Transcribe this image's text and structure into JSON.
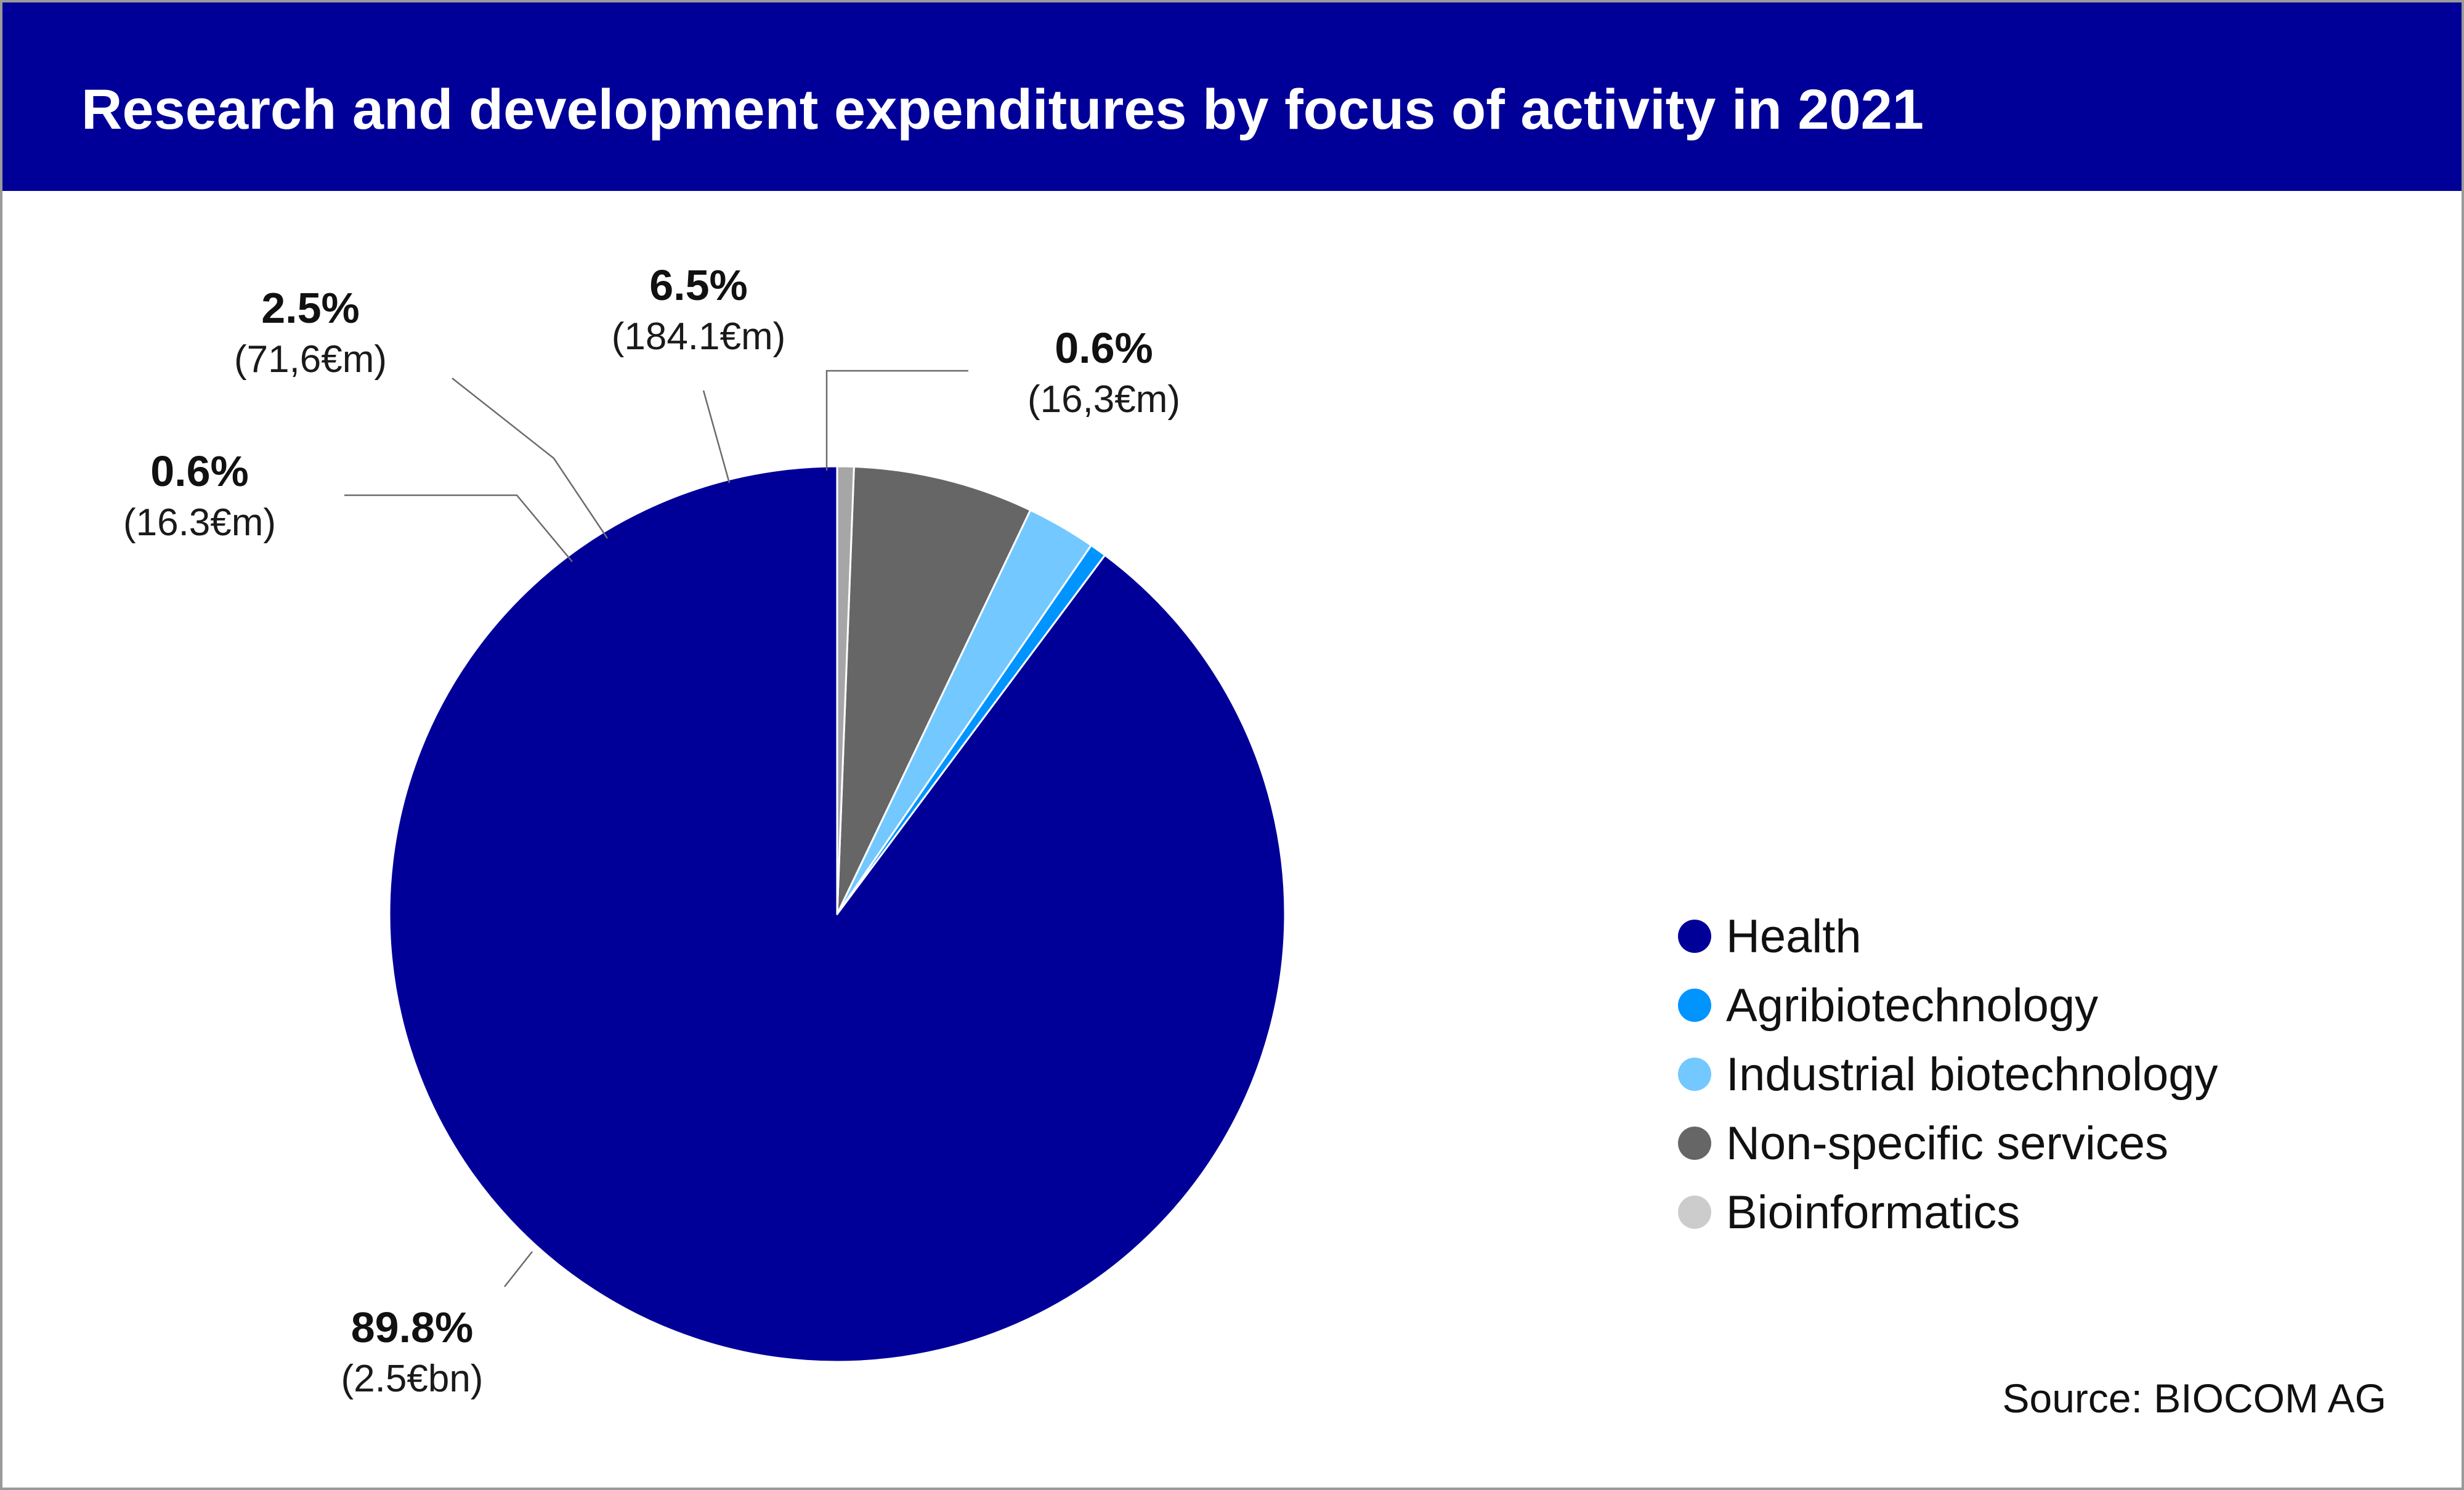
{
  "header": {
    "title": "Research and development expenditures by focus of activity in 2021"
  },
  "chart_data": {
    "type": "pie",
    "title": "Research and development expenditures by focus of activity in 2021",
    "slices": [
      {
        "name": "Health",
        "percent": 89.8,
        "pct_label": "89.8%",
        "amount_label": "(2.5€bn)",
        "color": "#000099"
      },
      {
        "name": "Agribiotechnology",
        "percent": 0.6,
        "pct_label": "0.6%",
        "amount_label": "(16.3€m)",
        "color": "#0094ff"
      },
      {
        "name": "Industrial biotechnology",
        "percent": 2.5,
        "pct_label": "2.5%",
        "amount_label": "(71,6€m)",
        "color": "#73c8ff"
      },
      {
        "name": "Non-specific services",
        "percent": 6.5,
        "pct_label": "6.5%",
        "amount_label": "(184.1€m)",
        "color": "#666666"
      },
      {
        "name": "Bioinformatics",
        "percent": 0.6,
        "pct_label": "0.6%",
        "amount_label": "(16,3€m)",
        "color": "#a6a6a6"
      }
    ],
    "legend_position": "right"
  },
  "legend": {
    "items": [
      {
        "label": "Health",
        "color": "#000099"
      },
      {
        "label": "Agribiotechnology",
        "color": "#0094ff"
      },
      {
        "label": "Industrial biotechnology",
        "color": "#73c8ff"
      },
      {
        "label": "Non-specific services",
        "color": "#666666"
      },
      {
        "label": "Bioinformatics",
        "color": "#cccccc"
      }
    ]
  },
  "source": "Source: BIOCOM AG"
}
